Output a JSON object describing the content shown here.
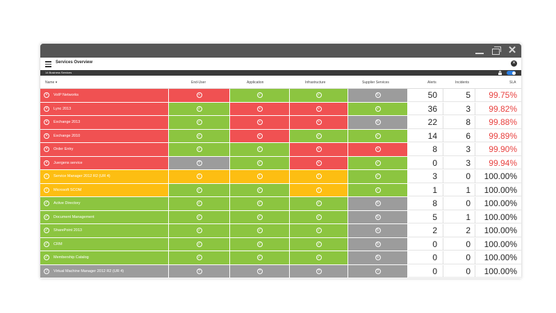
{
  "colors": {
    "red": "#f05152",
    "green": "#8cc540",
    "yellow": "#fdbe12",
    "gray": "#9c9c9c",
    "sla_bad": "#e8413f",
    "sla_ok": "#222222"
  },
  "titlebar": {
    "minimize_icon": "minimize-icon",
    "restore_icon": "restore-icon",
    "close_glyph": "✕"
  },
  "header": {
    "title": "Services Overview",
    "close_glyph": "✕"
  },
  "subbar": {
    "text": "14 Business Services"
  },
  "columns": {
    "name": "Name ▾",
    "end_user": "End-User",
    "application": "Application",
    "infrastructure": "Infrastructure",
    "supplier": "Supplier Services",
    "alerts": "Alerts",
    "incidents": "Incidents",
    "sla": "SLA"
  },
  "rows": [
    {
      "name": "VoIP Networks",
      "status": "red",
      "cells": [
        "red",
        "green",
        "green",
        "gray"
      ],
      "alerts": "50",
      "incidents": "5",
      "sla": "99.75%",
      "sla_ok": false
    },
    {
      "name": "Lync 2013",
      "status": "red",
      "cells": [
        "green",
        "red",
        "red",
        "green"
      ],
      "alerts": "36",
      "incidents": "3",
      "sla": "99.82%",
      "sla_ok": false
    },
    {
      "name": "Exchange 2013",
      "status": "red",
      "cells": [
        "green",
        "red",
        "red",
        "gray"
      ],
      "alerts": "22",
      "incidents": "8",
      "sla": "99.88%",
      "sla_ok": false
    },
    {
      "name": "Exchange 2010",
      "status": "red",
      "cells": [
        "green",
        "red",
        "green",
        "green"
      ],
      "alerts": "14",
      "incidents": "6",
      "sla": "99.89%",
      "sla_ok": false
    },
    {
      "name": "Order Entry",
      "status": "red",
      "cells": [
        "green",
        "green",
        "red",
        "red"
      ],
      "alerts": "8",
      "incidents": "3",
      "sla": "99.90%",
      "sla_ok": false
    },
    {
      "name": "Juergens service",
      "status": "red",
      "cells": [
        "gray",
        "green",
        "red",
        "green"
      ],
      "alerts": "0",
      "incidents": "3",
      "sla": "99.94%",
      "sla_ok": false
    },
    {
      "name": "Service Manager 2012 R2 (UR 4)",
      "status": "yellow",
      "cells": [
        "yellow",
        "yellow",
        "yellow",
        "green"
      ],
      "alerts": "3",
      "incidents": "0",
      "sla": "100.00%",
      "sla_ok": true
    },
    {
      "name": "Microsoft SCOM",
      "status": "yellow",
      "cells": [
        "green",
        "green",
        "yellow",
        "green"
      ],
      "alerts": "1",
      "incidents": "1",
      "sla": "100.00%",
      "sla_ok": true
    },
    {
      "name": "Active Directory",
      "status": "green",
      "cells": [
        "green",
        "green",
        "green",
        "gray"
      ],
      "alerts": "8",
      "incidents": "0",
      "sla": "100.00%",
      "sla_ok": true
    },
    {
      "name": "Document Management",
      "status": "green",
      "cells": [
        "green",
        "green",
        "green",
        "gray"
      ],
      "alerts": "5",
      "incidents": "1",
      "sla": "100.00%",
      "sla_ok": true
    },
    {
      "name": "SharePoint 2013",
      "status": "green",
      "cells": [
        "green",
        "green",
        "green",
        "gray"
      ],
      "alerts": "2",
      "incidents": "2",
      "sla": "100.00%",
      "sla_ok": true
    },
    {
      "name": "CRM",
      "status": "green",
      "cells": [
        "green",
        "green",
        "green",
        "gray"
      ],
      "alerts": "0",
      "incidents": "0",
      "sla": "100.00%",
      "sla_ok": true
    },
    {
      "name": "Membership Catalog",
      "status": "green",
      "cells": [
        "green",
        "green",
        "green",
        "gray"
      ],
      "alerts": "0",
      "incidents": "0",
      "sla": "100.00%",
      "sla_ok": true
    },
    {
      "name": "Virtual Machine Manager 2012 R2 (UR 4)",
      "status": "gray",
      "cells": [
        "gray",
        "gray",
        "gray",
        "gray"
      ],
      "alerts": "0",
      "incidents": "0",
      "sla": "100.00%",
      "sla_ok": true
    }
  ],
  "status_glyphs": {
    "red": "×",
    "green": "✓",
    "yellow": "!",
    "gray": "?",
    "gray_supplier": "↻"
  }
}
